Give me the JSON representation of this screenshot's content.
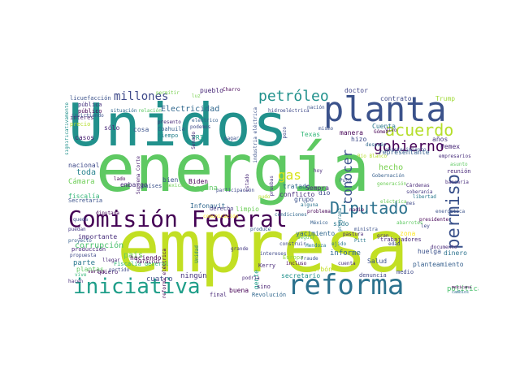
{
  "words": [
    {
      "text": "empresa",
      "color": "#c2df23"
    },
    {
      "text": "energía",
      "color": "#5ec962"
    },
    {
      "text": "Unidos",
      "color": "#21918c"
    },
    {
      "text": "planta",
      "color": "#3b528b"
    },
    {
      "text": "reforma",
      "color": "#2c728e"
    },
    {
      "text": "iniciativa",
      "color": "#1f9e89"
    },
    {
      "text": "Comisión Federal",
      "color": "#440154"
    },
    {
      "text": "Diputado",
      "color": "#2c728e"
    },
    {
      "text": "permiso",
      "color": "#3b528b"
    },
    {
      "text": "acuerdo",
      "color": "#b5de2b"
    },
    {
      "text": "gobierno",
      "color": "#440154"
    },
    {
      "text": "petróleo",
      "color": "#21918c"
    },
    {
      "text": "millones",
      "color": "#3e4989"
    },
    {
      "text": "gas",
      "color": "#d8e219"
    },
    {
      "text": "conocer",
      "color": "#3b528b"
    },
    {
      "text": "Electricidad",
      "color": "#31688e"
    },
    {
      "text": "corrupción",
      "color": "#4ac16d"
    },
    {
      "text": "ninguna",
      "color": "#5ec962"
    },
    {
      "text": "país",
      "color": "#6ece58"
    },
    {
      "text": "hecho",
      "color": "#7ad151"
    },
    {
      "text": "Pemex",
      "color": "#482878"
    },
    {
      "text": "informe",
      "color": "#31688e"
    },
    {
      "text": "Cámara",
      "color": "#6ece58"
    },
    {
      "text": "toda",
      "color": "#26828e"
    },
    {
      "text": "nacional",
      "color": "#3e4989"
    },
    {
      "text": "fiscalía",
      "color": "#35b779"
    },
    {
      "text": "importante",
      "color": "#472d7b"
    },
    {
      "text": "parte",
      "color": "#2a788e"
    },
    {
      "text": "plantas",
      "color": "#5ec962"
    },
    {
      "text": "secretario",
      "color": "#21918c"
    },
    {
      "text": "política",
      "color": "#4ac16d"
    },
    {
      "text": "Salud",
      "color": "#3b528b"
    },
    {
      "text": "zona",
      "color": "#fde725"
    },
    {
      "text": "yacimiento",
      "color": "#31688e"
    },
    {
      "text": "carbón",
      "color": "#c2df23"
    },
    {
      "text": "ningún",
      "color": "#46327e"
    },
    {
      "text": "cuatro",
      "color": "#3e4989"
    },
    {
      "text": "buena",
      "color": "#440154"
    },
    {
      "text": "huelga",
      "color": "#3b528b"
    },
    {
      "text": "dinero",
      "color": "#2c728e"
    },
    {
      "text": "planteamiento",
      "color": "#355f8d"
    },
    {
      "text": "contrato",
      "color": "#3e4989"
    },
    {
      "text": "Cuenta",
      "color": "#2a788e"
    },
    {
      "text": "años",
      "color": "#46327e"
    },
    {
      "text": "representante",
      "color": "#355f8d"
    },
    {
      "text": "Biden",
      "color": "#440154"
    },
    {
      "text": "cosa",
      "color": "#3b528b"
    },
    {
      "text": "PRI",
      "color": "#1fa187"
    },
    {
      "text": "sólo",
      "color": "#482878"
    },
    {
      "text": "hizo",
      "color": "#3e4989"
    },
    {
      "text": "casos",
      "color": "#481f70"
    },
    {
      "text": "pueblo",
      "color": "#482878"
    },
    {
      "text": "Trump",
      "color": "#a0da39"
    },
    {
      "text": "doctor",
      "color": "#414487"
    },
    {
      "text": "Texas",
      "color": "#35b779"
    },
    {
      "text": "grupo",
      "color": "#3b528b"
    },
    {
      "text": "conflicto",
      "color": "#472d7b"
    },
    {
      "text": "Infonavit",
      "color": "#31688e"
    },
    {
      "text": "limpio",
      "color": "#6ece58"
    },
    {
      "text": "dio",
      "color": "#3e4989"
    },
    {
      "text": "sido",
      "color": "#2a788e"
    },
    {
      "text": "tratado",
      "color": "#31688e"
    },
    {
      "text": "Sempra",
      "color": "#482878"
    },
    {
      "text": "bien",
      "color": "#3b528b"
    },
    {
      "text": "haciendo",
      "color": "#440154"
    },
    {
      "text": "embargo",
      "color": "#472d7b"
    },
    {
      "text": "Secretaría",
      "color": "#3b528b"
    },
    {
      "text": "quiero",
      "color": "#481f70"
    },
    {
      "text": "Fiscalía General",
      "color": "#35b779"
    },
    {
      "text": "Kerry",
      "color": "#482878"
    },
    {
      "text": "Europa",
      "color": "#90d743"
    },
    {
      "text": "gente",
      "color": "#1f9e89"
    },
    {
      "text": "manera",
      "color": "#440154"
    },
    {
      "text": "trabajadores",
      "color": "#482878"
    },
    {
      "text": "denuncia",
      "color": "#414487"
    },
    {
      "text": "medio",
      "color": "#3e4989"
    },
    {
      "text": "países",
      "color": "#3b528b"
    },
    {
      "text": "derecho",
      "color": "#443983"
    },
    {
      "text": "Coahuila",
      "color": "#355f8d"
    },
    {
      "text": "tiempo",
      "color": "#26828e"
    },
    {
      "text": "interés",
      "color": "#481f70"
    },
    {
      "text": "precio",
      "color": "#b5de2b"
    },
    {
      "text": "público",
      "color": "#440154"
    },
    {
      "text": "pública",
      "color": "#46327e"
    },
    {
      "text": "licuefacción",
      "color": "#3b528b"
    },
    {
      "text": "significativamente",
      "color": "#21918c"
    },
    {
      "text": "producción",
      "color": "#482878"
    },
    {
      "text": "propuesta",
      "color": "#3e4989"
    },
    {
      "text": "puedan",
      "color": "#443983"
    },
    {
      "text": "proyecto",
      "color": "#355f8d"
    },
    {
      "text": "queda",
      "color": "#3e4989"
    },
    {
      "text": "vive",
      "color": "#35b779"
    },
    {
      "text": "Revolución",
      "color": "#31688e"
    },
    {
      "text": "sino",
      "color": "#481f70"
    },
    {
      "text": "final",
      "color": "#482878"
    },
    {
      "text": "mexicana",
      "color": "#440154"
    },
    {
      "text": "reunión",
      "color": "#482878"
    },
    {
      "text": "asunto",
      "color": "#5ec962"
    },
    {
      "text": "empresarios",
      "color": "#472d7b"
    },
    {
      "text": "mes",
      "color": "#3e4989"
    },
    {
      "text": "generación",
      "color": "#6ece58"
    },
    {
      "text": "Vivo",
      "color": "#482878"
    },
    {
      "text": "Gómez",
      "color": "#440154"
    },
    {
      "text": "soberanía",
      "color": "#443983"
    },
    {
      "text": "Cárdenas",
      "color": "#482878"
    },
    {
      "text": "libertad",
      "color": "#2a788e"
    },
    {
      "text": "bancaria",
      "color": "#472d7b"
    },
    {
      "text": "Río Blanco",
      "color": "#b5de2b"
    },
    {
      "text": "después",
      "color": "#31688e"
    },
    {
      "text": "nación",
      "color": "#3b528b"
    },
    {
      "text": "hidroeléctrica",
      "color": "#3e4989"
    },
    {
      "text": "situación",
      "color": "#31688e"
    },
    {
      "text": "relación",
      "color": "#5ec962"
    },
    {
      "text": "presento",
      "color": "#482878"
    },
    {
      "text": "eléctrico",
      "color": "#355f8d"
    },
    {
      "text": "podemos",
      "color": "#3e4989"
    },
    {
      "text": "Charro",
      "color": "#440154"
    },
    {
      "text": "luz",
      "color": "#7ad151"
    },
    {
      "text": "gran",
      "color": "#472d7b"
    },
    {
      "text": "edad",
      "color": "#3e4989"
    },
    {
      "text": "hoy",
      "color": "#482878"
    },
    {
      "text": "mismo",
      "color": "#3b528b"
    },
    {
      "text": "alguna",
      "color": "#2c728e"
    },
    {
      "text": "problema",
      "color": "#440154"
    },
    {
      "text": "fraude",
      "color": "#3b528b"
    },
    {
      "text": "Mendoza",
      "color": "#2a788e"
    },
    {
      "text": "incluso",
      "color": "#440154"
    },
    {
      "text": "podría",
      "color": "#482878"
    },
    {
      "text": "intereses",
      "color": "#3e4989"
    },
    {
      "text": "grande",
      "color": "#443983"
    },
    {
      "text": "produce",
      "color": "#355f8d"
    },
    {
      "text": "Unidad",
      "color": "#26828e"
    },
    {
      "text": "llegar",
      "color": "#482878"
    },
    {
      "text": "Veracruz",
      "color": "#440154"
    },
    {
      "text": "partido",
      "color": "#3e4989"
    },
    {
      "text": "varios",
      "color": "#440154"
    },
    {
      "text": "hacen",
      "color": "#472d7b"
    },
    {
      "text": "invirtiendo",
      "color": "#3b528b"
    },
    {
      "text": "México",
      "color": "#355f8d"
    },
    {
      "text": "cambios",
      "color": "#2c728e"
    },
    {
      "text": "eléctrica",
      "color": "#6ece58"
    },
    {
      "text": "comunicación",
      "color": "#fde725"
    },
    {
      "text": "condiciones",
      "color": "#31688e"
    },
    {
      "text": "industria eléctrica",
      "color": "#3b528b"
    },
    {
      "text": "Suprema Corte",
      "color": "#481f70"
    },
    {
      "text": "reforma eléctrica",
      "color": "#440154"
    },
    {
      "text": "programa",
      "color": "#2a788e"
    },
    {
      "text": "documento",
      "color": "#482878"
    },
    {
      "text": "construir",
      "color": "#3e4989"
    },
    {
      "text": "seguir",
      "color": "#5ec962"
    },
    {
      "text": "pudo",
      "color": "#b5de2b"
    },
    {
      "text": "nadie",
      "color": "#440154"
    },
    {
      "text": "abastecimiento",
      "color": "#3b528b"
    },
    {
      "text": "Senado",
      "color": "#482878"
    },
    {
      "text": "ley",
      "color": "#3e4989"
    },
    {
      "text": "permitir",
      "color": "#7ad151"
    },
    {
      "text": "presidente",
      "color": "#440154"
    },
    {
      "text": "energética",
      "color": "#3b528b"
    },
    {
      "text": "Gobernación",
      "color": "#355f8d"
    },
    {
      "text": "Estado",
      "color": "#482878"
    },
    {
      "text": "pruebas",
      "color": "#46327e"
    },
    {
      "text": "participación",
      "color": "#3e4989"
    },
    {
      "text": "lado",
      "color": "#440154"
    },
    {
      "text": "ejido",
      "color": "#2a788e"
    },
    {
      "text": "cuenta",
      "color": "#472d7b"
    },
    {
      "text": "pagar",
      "color": "#3b528b"
    },
    {
      "text": "pozo",
      "color": "#3e4989"
    },
    {
      "text": "mexicano",
      "color": "#6ece58"
    },
    {
      "text": "pastura",
      "color": "#482878"
    },
    {
      "text": "diputada",
      "color": "#440154"
    },
    {
      "text": "ministra",
      "color": "#3b528b"
    },
    {
      "text": "abarrotes",
      "color": "#5ec962"
    },
    {
      "text": "Pitt",
      "color": "#2a788e"
    },
    {
      "text": "Pulo",
      "color": "#3e4989"
    },
    {
      "text": "Fitch",
      "color": "#482878"
    },
    {
      "text": "Gas",
      "color": "#7ad151"
    }
  ]
}
